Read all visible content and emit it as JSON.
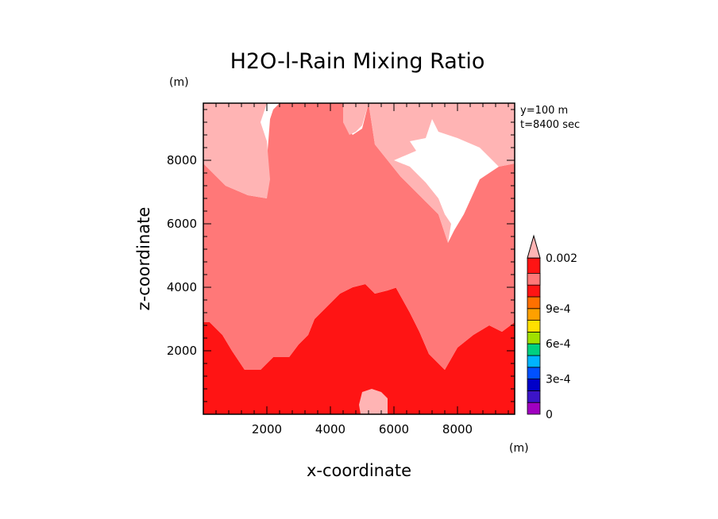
{
  "chart_data": {
    "type": "heatmap",
    "title": "H2O-l-Rain Mixing Ratio",
    "xlabel": "x-coordinate",
    "ylabel": "z-coordinate",
    "x_unit": "(m)",
    "y_unit": "(m)",
    "xlim": [
      0,
      9800
    ],
    "ylim": [
      0,
      9800
    ],
    "x_ticks": [
      2000,
      4000,
      6000,
      8000
    ],
    "y_ticks": [
      2000,
      4000,
      6000,
      8000
    ],
    "annotations": [
      "y=100 m",
      "t=8400 sec"
    ],
    "colorbar": {
      "levels": [
        0,
        0.0001,
        0.0002,
        0.0003,
        0.0004,
        0.0005,
        0.0006,
        0.0007,
        0.0008,
        0.0009,
        0.001,
        0.002
      ],
      "tick_values": [
        0,
        0.0003,
        0.0006,
        0.0009,
        0.002
      ],
      "tick_labels": [
        "0",
        "3e-4",
        "6e-4",
        "9e-4",
        "0.002"
      ],
      "colors": [
        "#a000c0",
        "#3c14c8",
        "#0000c8",
        "#0050ff",
        "#00b4ff",
        "#00d080",
        "#a0e000",
        "#ffe000",
        "#ffa000",
        "#ff7000",
        "#ff1414",
        "#ff7878",
        "#ffb4b4"
      ],
      "extend": "max"
    },
    "regions": [
      {
        "name": "dark-red",
        "level": "0.001–0.002",
        "color": "#ff1414",
        "points": [
          [
            0,
            0
          ],
          [
            0,
            2900
          ],
          [
            200,
            2900
          ],
          [
            600,
            2500
          ],
          [
            900,
            2000
          ],
          [
            1300,
            1400
          ],
          [
            1800,
            1400
          ],
          [
            2200,
            1800
          ],
          [
            2700,
            1800
          ],
          [
            3000,
            2200
          ],
          [
            3300,
            2500
          ],
          [
            3500,
            3000
          ],
          [
            3800,
            3300
          ],
          [
            4000,
            3500
          ],
          [
            4300,
            3800
          ],
          [
            4700,
            4000
          ],
          [
            5100,
            4100
          ],
          [
            5400,
            3800
          ],
          [
            5800,
            3900
          ],
          [
            6100,
            4000
          ],
          [
            6300,
            4400
          ],
          [
            6500,
            4800
          ],
          [
            6300,
            4800
          ],
          [
            6200,
            4500
          ],
          [
            6000,
            4100
          ],
          [
            6500,
            3200
          ],
          [
            6800,
            2600
          ],
          [
            7100,
            1900
          ],
          [
            7600,
            1400
          ],
          [
            8000,
            2100
          ],
          [
            8500,
            2500
          ],
          [
            9000,
            2800
          ],
          [
            9400,
            2600
          ],
          [
            9800,
            2900
          ],
          [
            9800,
            0
          ]
        ]
      },
      {
        "name": "medium-pink",
        "level": "0.002 and above",
        "color": "#ff7878",
        "points": [
          [
            0,
            2900
          ],
          [
            0,
            7900
          ],
          [
            700,
            7200
          ],
          [
            1400,
            6900
          ],
          [
            2000,
            6800
          ],
          [
            2000,
            8000
          ],
          [
            2100,
            9300
          ],
          [
            2200,
            9600
          ],
          [
            2400,
            9800
          ],
          [
            4400,
            9800
          ],
          [
            4400,
            9200
          ],
          [
            4700,
            8800
          ],
          [
            5000,
            9000
          ],
          [
            5200,
            9800
          ],
          [
            5400,
            8500
          ],
          [
            6200,
            7500
          ],
          [
            6900,
            6800
          ],
          [
            7400,
            6300
          ],
          [
            7600,
            5700
          ],
          [
            7700,
            5400
          ],
          [
            7900,
            5800
          ],
          [
            8200,
            6300
          ],
          [
            8700,
            7400
          ],
          [
            9300,
            7800
          ],
          [
            9800,
            7900
          ],
          [
            9800,
            2900
          ],
          [
            9400,
            2600
          ],
          [
            9000,
            2800
          ],
          [
            8500,
            2500
          ],
          [
            8000,
            2100
          ],
          [
            7600,
            1400
          ],
          [
            7100,
            1900
          ],
          [
            6800,
            2600
          ],
          [
            6500,
            3200
          ],
          [
            6000,
            4100
          ],
          [
            6200,
            4500
          ],
          [
            6300,
            4800
          ],
          [
            6500,
            4800
          ],
          [
            6300,
            4400
          ],
          [
            6100,
            4000
          ],
          [
            5800,
            3900
          ],
          [
            5400,
            3800
          ],
          [
            5100,
            4100
          ],
          [
            4700,
            4000
          ],
          [
            4300,
            3800
          ],
          [
            4000,
            3500
          ],
          [
            3800,
            3300
          ],
          [
            3500,
            3000
          ],
          [
            3300,
            2500
          ],
          [
            3000,
            2200
          ],
          [
            2700,
            1800
          ],
          [
            2200,
            1800
          ],
          [
            1800,
            1400
          ],
          [
            1300,
            1400
          ],
          [
            900,
            2000
          ],
          [
            600,
            2500
          ],
          [
            200,
            2900
          ]
        ]
      },
      {
        "name": "light-pink-top-left",
        "level": "above 0.002",
        "color": "#ffb4b4",
        "points": [
          [
            0,
            9800
          ],
          [
            2000,
            9800
          ],
          [
            1800,
            9200
          ],
          [
            2000,
            8600
          ],
          [
            2100,
            7400
          ],
          [
            2000,
            6800
          ],
          [
            1400,
            6900
          ],
          [
            700,
            7200
          ],
          [
            0,
            7900
          ]
        ]
      },
      {
        "name": "light-pink-top-right",
        "level": "above 0.002",
        "color": "#ffb4b4",
        "points": [
          [
            5200,
            9800
          ],
          [
            9800,
            9800
          ],
          [
            9800,
            7900
          ],
          [
            9300,
            7800
          ],
          [
            8700,
            8400
          ],
          [
            8000,
            8700
          ],
          [
            7400,
            8900
          ],
          [
            7200,
            9300
          ],
          [
            7000,
            8700
          ],
          [
            6500,
            8600
          ],
          [
            6700,
            8300
          ],
          [
            6000,
            8000
          ],
          [
            6500,
            7800
          ],
          [
            7000,
            7300
          ],
          [
            7400,
            6800
          ],
          [
            7600,
            6300
          ],
          [
            7800,
            6000
          ],
          [
            7700,
            5400
          ],
          [
            7600,
            5700
          ],
          [
            7400,
            6300
          ],
          [
            6900,
            6800
          ],
          [
            6200,
            7500
          ],
          [
            5400,
            8500
          ]
        ]
      },
      {
        "name": "light-pink-top-mid",
        "level": "above 0.002",
        "color": "#ffb4b4",
        "points": [
          [
            4400,
            9800
          ],
          [
            5200,
            9800
          ],
          [
            5000,
            9100
          ],
          [
            4800,
            8900
          ],
          [
            4600,
            8800
          ],
          [
            4400,
            9200
          ]
        ]
      },
      {
        "name": "light-pink-bottom",
        "level": "above 0.002",
        "color": "#ffb4b4",
        "points": [
          [
            4950,
            0
          ],
          [
            5800,
            0
          ],
          [
            5800,
            500
          ],
          [
            5600,
            700
          ],
          [
            5300,
            800
          ],
          [
            5000,
            700
          ],
          [
            4900,
            300
          ]
        ]
      }
    ]
  }
}
